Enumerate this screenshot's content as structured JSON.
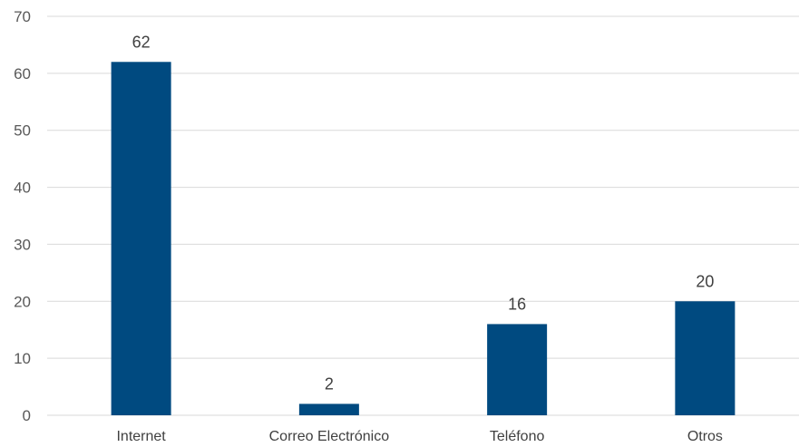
{
  "chart_data": {
    "type": "bar",
    "title": "",
    "xlabel": "",
    "ylabel": "",
    "categories": [
      "Internet",
      "Correo Electrónico",
      "Teléfono",
      "Otros"
    ],
    "values": [
      62,
      2,
      16,
      20
    ],
    "data_labels": [
      "62",
      "2",
      "16",
      "20"
    ],
    "ylim": [
      0,
      70
    ],
    "yticks": [
      0,
      10,
      20,
      30,
      40,
      50,
      60,
      70
    ],
    "ytick_labels": [
      "0",
      "10",
      "20",
      "30",
      "40",
      "50",
      "60",
      "70"
    ],
    "grid": true,
    "legend": "none",
    "bar_color": "#004a80"
  }
}
